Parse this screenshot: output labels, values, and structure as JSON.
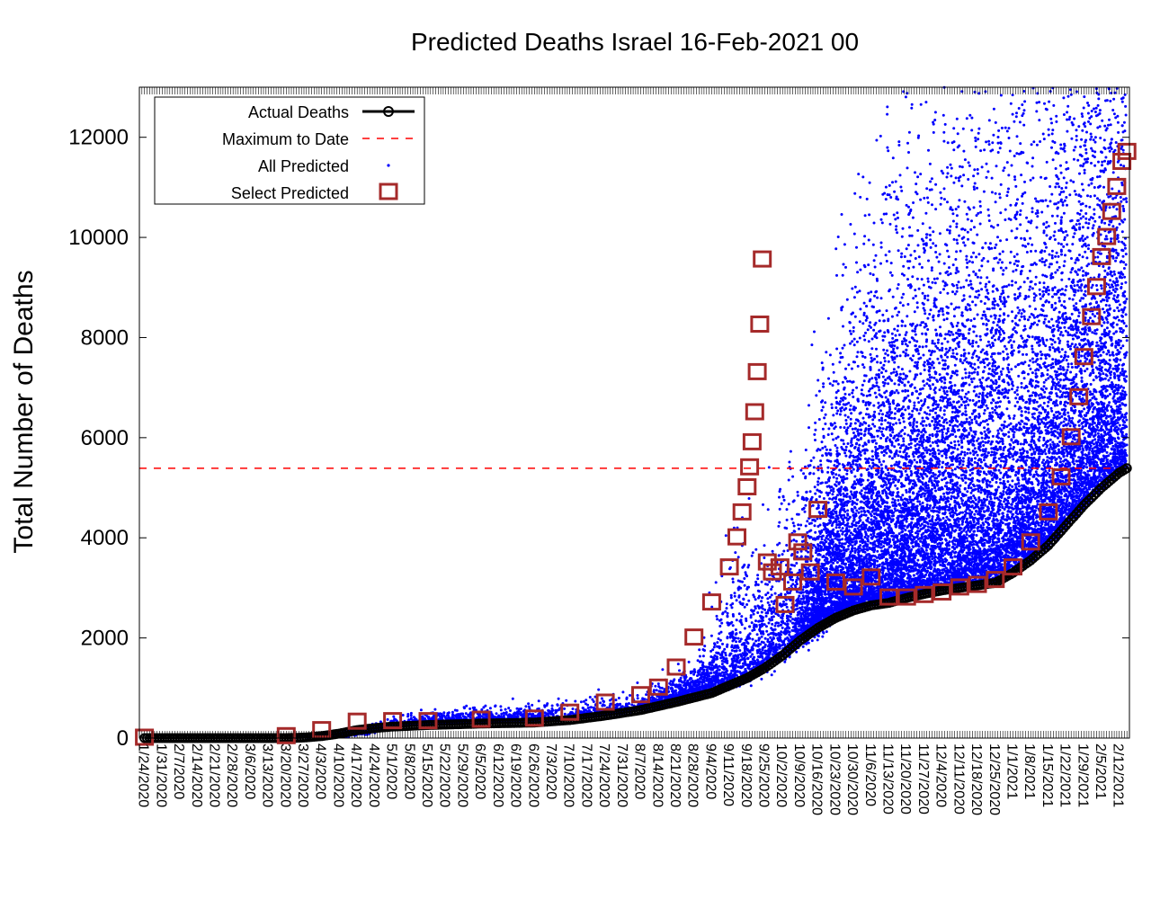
{
  "chart_data": {
    "type": "scatter",
    "title": "Predicted Deaths Israel 16-Feb-2021 00",
    "xlabel": "",
    "ylabel": "Total Number of Deaths",
    "ylim": [
      0,
      13000
    ],
    "xlim": [
      "1/22/2020",
      "2/16/2021"
    ],
    "grid": false,
    "legend_position": "top-left",
    "y_ticks": [
      0,
      2000,
      4000,
      6000,
      8000,
      10000,
      12000
    ],
    "x_tick_labels": [
      "1/24/2020",
      "1/31/2020",
      "2/7/2020",
      "2/14/2020",
      "2/21/2020",
      "2/28/2020",
      "3/6/2020",
      "3/13/2020",
      "3/20/2020",
      "3/27/2020",
      "4/3/2020",
      "4/10/2020",
      "4/17/2020",
      "4/24/2020",
      "5/1/2020",
      "5/8/2020",
      "5/15/2020",
      "5/22/2020",
      "5/29/2020",
      "6/5/2020",
      "6/12/2020",
      "6/19/2020",
      "6/26/2020",
      "7/3/2020",
      "7/10/2020",
      "7/17/2020",
      "7/24/2020",
      "7/31/2020",
      "8/7/2020",
      "8/14/2020",
      "8/21/2020",
      "8/28/2020",
      "9/4/2020",
      "9/11/2020",
      "9/18/2020",
      "9/25/2020",
      "10/2/2020",
      "10/9/2020",
      "10/16/2020",
      "10/23/2020",
      "10/30/2020",
      "11/6/2020",
      "11/13/2020",
      "11/20/2020",
      "11/27/2020",
      "12/4/2020",
      "12/11/2020",
      "12/18/2020",
      "12/25/2020",
      "1/1/2021",
      "1/8/2021",
      "1/15/2021",
      "1/22/2021",
      "1/29/2021",
      "2/5/2021",
      "2/12/2021"
    ],
    "series": [
      {
        "name": "Actual Deaths",
        "style": "line-with-circles",
        "color": "#000000",
        "x": [
          "1/24/2020",
          "3/20/2020",
          "3/27/2020",
          "4/3/2020",
          "4/10/2020",
          "4/17/2020",
          "4/24/2020",
          "5/1/2020",
          "5/15/2020",
          "6/5/2020",
          "6/26/2020",
          "7/10/2020",
          "7/24/2020",
          "8/7/2020",
          "8/21/2020",
          "9/4/2020",
          "9/11/2020",
          "9/18/2020",
          "9/25/2020",
          "10/2/2020",
          "10/9/2020",
          "10/16/2020",
          "10/23/2020",
          "10/30/2020",
          "11/6/2020",
          "11/13/2020",
          "11/20/2020",
          "11/27/2020",
          "12/4/2020",
          "12/11/2020",
          "12/18/2020",
          "12/25/2020",
          "1/1/2021",
          "1/8/2021",
          "1/15/2021",
          "1/22/2021",
          "1/29/2021",
          "2/5/2021",
          "2/12/2021",
          "2/15/2021"
        ],
        "y": [
          0,
          0,
          10,
          40,
          90,
          160,
          200,
          230,
          260,
          290,
          310,
          360,
          450,
          560,
          720,
          900,
          1050,
          1200,
          1400,
          1650,
          1950,
          2200,
          2400,
          2550,
          2650,
          2700,
          2800,
          2880,
          2950,
          3000,
          3050,
          3100,
          3300,
          3550,
          3850,
          4250,
          4650,
          5000,
          5300,
          5390
        ]
      },
      {
        "name": "Maximum to Date",
        "style": "dashed-line",
        "color": "#ff0000",
        "y": 5390
      },
      {
        "name": "All Predicted",
        "style": "dots",
        "color": "#0000ff"
      },
      {
        "name": "Select Predicted",
        "style": "open-squares",
        "color": "#a52a2a",
        "x": [
          "1/24/2020",
          "3/20/2020",
          "4/3/2020",
          "4/17/2020",
          "5/1/2020",
          "5/15/2020",
          "6/5/2020",
          "6/26/2020",
          "7/10/2020",
          "7/24/2020",
          "8/7/2020",
          "8/14/2020",
          "8/21/2020",
          "8/28/2020",
          "9/4/2020",
          "9/11/2020",
          "9/14/2020",
          "9/16/2020",
          "9/18/2020",
          "9/19/2020",
          "9/20/2020",
          "9/21/2020",
          "9/22/2020",
          "9/23/2020",
          "9/24/2020",
          "9/26/2020",
          "9/28/2020",
          "10/1/2020",
          "10/3/2020",
          "10/6/2020",
          "10/8/2020",
          "10/10/2020",
          "10/13/2020",
          "10/16/2020",
          "10/23/2020",
          "10/30/2020",
          "11/6/2020",
          "11/13/2020",
          "11/20/2020",
          "11/27/2020",
          "12/4/2020",
          "12/11/2020",
          "12/18/2020",
          "12/25/2020",
          "1/1/2021",
          "1/8/2021",
          "1/15/2021",
          "1/20/2021",
          "1/24/2021",
          "1/27/2021",
          "1/29/2021",
          "2/1/2021",
          "2/3/2021",
          "2/5/2021",
          "2/7/2021",
          "2/9/2021",
          "2/11/2021",
          "2/13/2021",
          "2/15/2021"
        ],
        "y": [
          0,
          30,
          150,
          320,
          330,
          330,
          360,
          380,
          500,
          700,
          850,
          1000,
          1400,
          2000,
          2700,
          3400,
          4000,
          4500,
          5000,
          5400,
          5900,
          6500,
          7300,
          8250,
          9550,
          3500,
          3300,
          3400,
          2650,
          3100,
          3900,
          3700,
          3300,
          4550,
          3100,
          3000,
          3200,
          2800,
          2800,
          2850,
          2900,
          3000,
          3050,
          3150,
          3400,
          3900,
          4500,
          5200,
          6000,
          6800,
          7600,
          8400,
          9000,
          9600,
          10000,
          10500,
          11000,
          11500,
          11700
        ]
      }
    ]
  }
}
